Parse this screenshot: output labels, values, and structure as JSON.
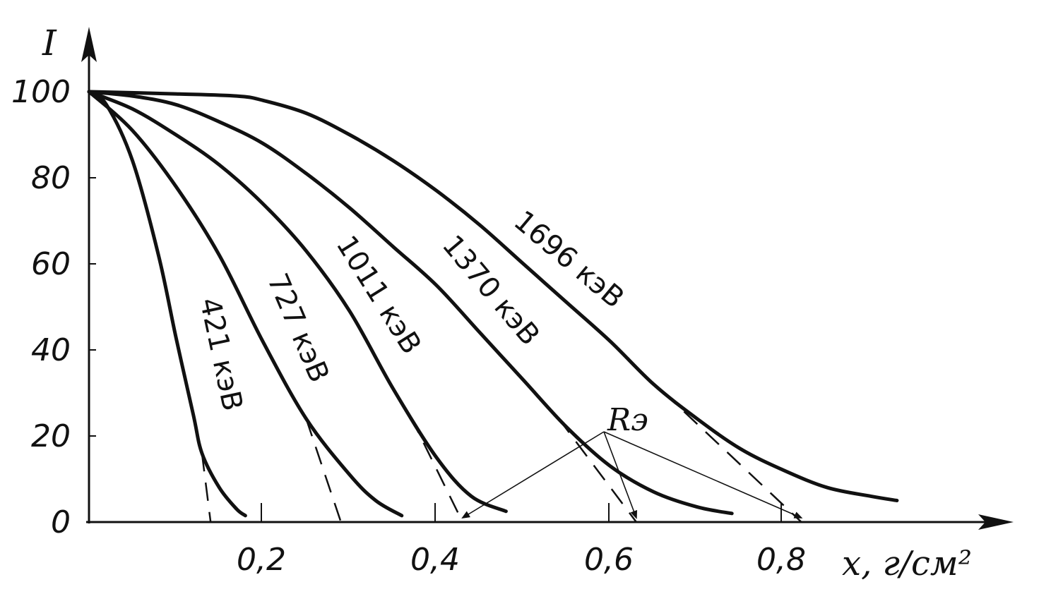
{
  "chart_data": {
    "type": "line",
    "ylabel": "I",
    "xlabel": "x, г/см²",
    "xlim": [
      0,
      1.06
    ],
    "ylim": [
      0,
      100
    ],
    "grid": false,
    "x_ticks": [
      "0,2",
      "0,4",
      "0,6",
      "0,8"
    ],
    "y_ticks": [
      "0",
      "20",
      "40",
      "60",
      "80",
      "100"
    ],
    "series": [
      {
        "name": "421 кэВ",
        "points": [
          [
            0,
            100
          ],
          [
            0.02,
            97
          ],
          [
            0.05,
            84
          ],
          [
            0.08,
            62
          ],
          [
            0.1,
            43
          ],
          [
            0.12,
            25
          ],
          [
            0.13,
            16
          ],
          [
            0.15,
            8
          ],
          [
            0.17,
            3
          ],
          [
            0.18,
            1.5
          ]
        ],
        "extrapolation_x": 0.14
      },
      {
        "name": "727 кэВ",
        "points": [
          [
            0,
            100
          ],
          [
            0.05,
            91
          ],
          [
            0.1,
            78
          ],
          [
            0.15,
            62
          ],
          [
            0.2,
            42
          ],
          [
            0.25,
            24
          ],
          [
            0.3,
            11
          ],
          [
            0.33,
            5
          ],
          [
            0.36,
            1.5
          ]
        ],
        "extrapolation_x": 0.29
      },
      {
        "name": "1011 кэВ",
        "points": [
          [
            0,
            100
          ],
          [
            0.05,
            96
          ],
          [
            0.1,
            90
          ],
          [
            0.15,
            83
          ],
          [
            0.2,
            74
          ],
          [
            0.25,
            63
          ],
          [
            0.3,
            49
          ],
          [
            0.35,
            31
          ],
          [
            0.4,
            15
          ],
          [
            0.44,
            6
          ],
          [
            0.48,
            2.5
          ]
        ],
        "extrapolation_x": 0.43
      },
      {
        "name": "1370 кэВ",
        "points": [
          [
            0,
            100
          ],
          [
            0.05,
            99
          ],
          [
            0.1,
            97
          ],
          [
            0.15,
            93
          ],
          [
            0.2,
            88
          ],
          [
            0.25,
            81
          ],
          [
            0.3,
            73
          ],
          [
            0.35,
            64
          ],
          [
            0.4,
            55
          ],
          [
            0.45,
            44
          ],
          [
            0.5,
            33
          ],
          [
            0.55,
            22
          ],
          [
            0.6,
            13
          ],
          [
            0.65,
            7
          ],
          [
            0.7,
            3.5
          ],
          [
            0.74,
            2
          ]
        ],
        "extrapolation_x": 0.63
      },
      {
        "name": "1696 кэВ",
        "points": [
          [
            0,
            100
          ],
          [
            0.1,
            99.5
          ],
          [
            0.17,
            99
          ],
          [
            0.2,
            98
          ],
          [
            0.25,
            95
          ],
          [
            0.3,
            90
          ],
          [
            0.35,
            84
          ],
          [
            0.4,
            77
          ],
          [
            0.45,
            69
          ],
          [
            0.5,
            60
          ],
          [
            0.55,
            51
          ],
          [
            0.6,
            42
          ],
          [
            0.65,
            32
          ],
          [
            0.7,
            24
          ],
          [
            0.75,
            17
          ],
          [
            0.8,
            12
          ],
          [
            0.85,
            8
          ],
          [
            0.9,
            6
          ],
          [
            0.93,
            5
          ]
        ],
        "extrapolation_x": 0.82
      }
    ],
    "annotation": {
      "label": "Rэ",
      "targets_x": [
        0.43,
        0.63,
        0.82
      ]
    }
  }
}
